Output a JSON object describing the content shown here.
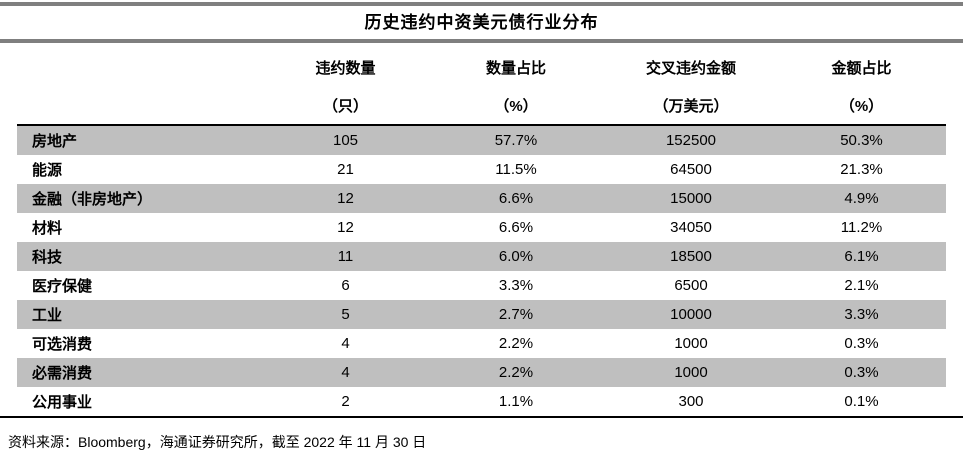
{
  "title": "历史违约中资美元债行业分布",
  "table": {
    "columns": [
      {
        "label": "违约数量",
        "unit": "（只）"
      },
      {
        "label": "数量占比",
        "unit": "（%）"
      },
      {
        "label": "交叉违约金额",
        "unit": "（万美元）"
      },
      {
        "label": "金额占比",
        "unit": "（%）"
      }
    ],
    "rows": [
      {
        "industry": "房地产",
        "count": "105",
        "count_pct": "57.7%",
        "amount": "152500",
        "amount_pct": "50.3%"
      },
      {
        "industry": "能源",
        "count": "21",
        "count_pct": "11.5%",
        "amount": "64500",
        "amount_pct": "21.3%"
      },
      {
        "industry": "金融（非房地产）",
        "count": "12",
        "count_pct": "6.6%",
        "amount": "15000",
        "amount_pct": "4.9%"
      },
      {
        "industry": "材料",
        "count": "12",
        "count_pct": "6.6%",
        "amount": "34050",
        "amount_pct": "11.2%"
      },
      {
        "industry": "科技",
        "count": "11",
        "count_pct": "6.0%",
        "amount": "18500",
        "amount_pct": "6.1%"
      },
      {
        "industry": "医疗保健",
        "count": "6",
        "count_pct": "3.3%",
        "amount": "6500",
        "amount_pct": "2.1%"
      },
      {
        "industry": "工业",
        "count": "5",
        "count_pct": "2.7%",
        "amount": "10000",
        "amount_pct": "3.3%"
      },
      {
        "industry": "可选消费",
        "count": "4",
        "count_pct": "2.2%",
        "amount": "1000",
        "amount_pct": "0.3%"
      },
      {
        "industry": "必需消费",
        "count": "4",
        "count_pct": "2.2%",
        "amount": "1000",
        "amount_pct": "0.3%"
      },
      {
        "industry": "公用事业",
        "count": "2",
        "count_pct": "1.1%",
        "amount": "300",
        "amount_pct": "0.1%"
      }
    ]
  },
  "source_note": "资料来源：Bloomberg，海通证券研究所，截至 2022 年 11 月 30 日",
  "colors": {
    "row_shade": "#bfbfbf",
    "rule_gray": "#7f7f7f",
    "border_black": "#000000"
  }
}
